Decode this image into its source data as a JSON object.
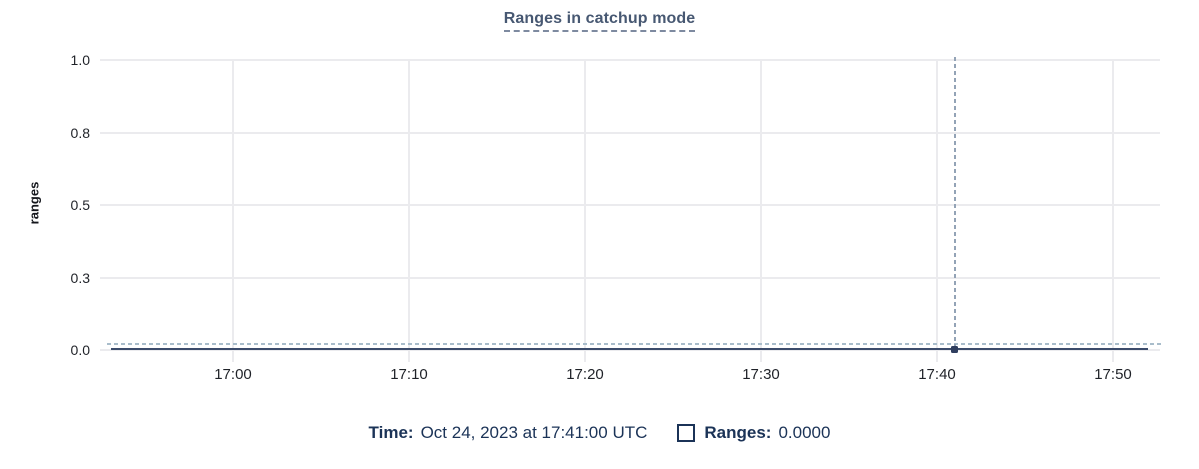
{
  "chart": {
    "title": "Ranges in catchup mode",
    "ylabel": "ranges"
  },
  "axes": {
    "y_ticks": [
      "1.0",
      "0.8",
      "0.5",
      "0.3",
      "0.0"
    ],
    "x_ticks": [
      "17:00",
      "17:10",
      "17:20",
      "17:30",
      "17:40",
      "17:50"
    ]
  },
  "legend": {
    "time_label": "Time:",
    "time_value": "Oct 24, 2023 at 17:41:00 UTC",
    "series_label": "Ranges:",
    "series_value": "0.0000"
  },
  "colors": {
    "title": "#475872",
    "legend_text": "#1b3357",
    "series_line": "#3c4c6b",
    "crosshair": "#a9bdcb",
    "gridline": "#ebebee"
  },
  "chart_data": {
    "type": "line",
    "title": "Ranges in catchup mode",
    "xlabel": "",
    "ylabel": "ranges",
    "ylim": [
      0,
      1.0
    ],
    "x": [
      "17:00",
      "17:10",
      "17:20",
      "17:30",
      "17:40",
      "17:50"
    ],
    "y_tick_labels": [
      "0.0",
      "0.3",
      "0.5",
      "0.8",
      "1.0"
    ],
    "series": [
      {
        "name": "Ranges",
        "values": [
          0,
          0,
          0,
          0,
          0,
          0
        ]
      }
    ],
    "grid": true,
    "legend_position": "bottom",
    "crosshair": {
      "time": "Oct 24, 2023 at 17:41:00 UTC",
      "value": 0,
      "value_text": "0.0000"
    }
  }
}
